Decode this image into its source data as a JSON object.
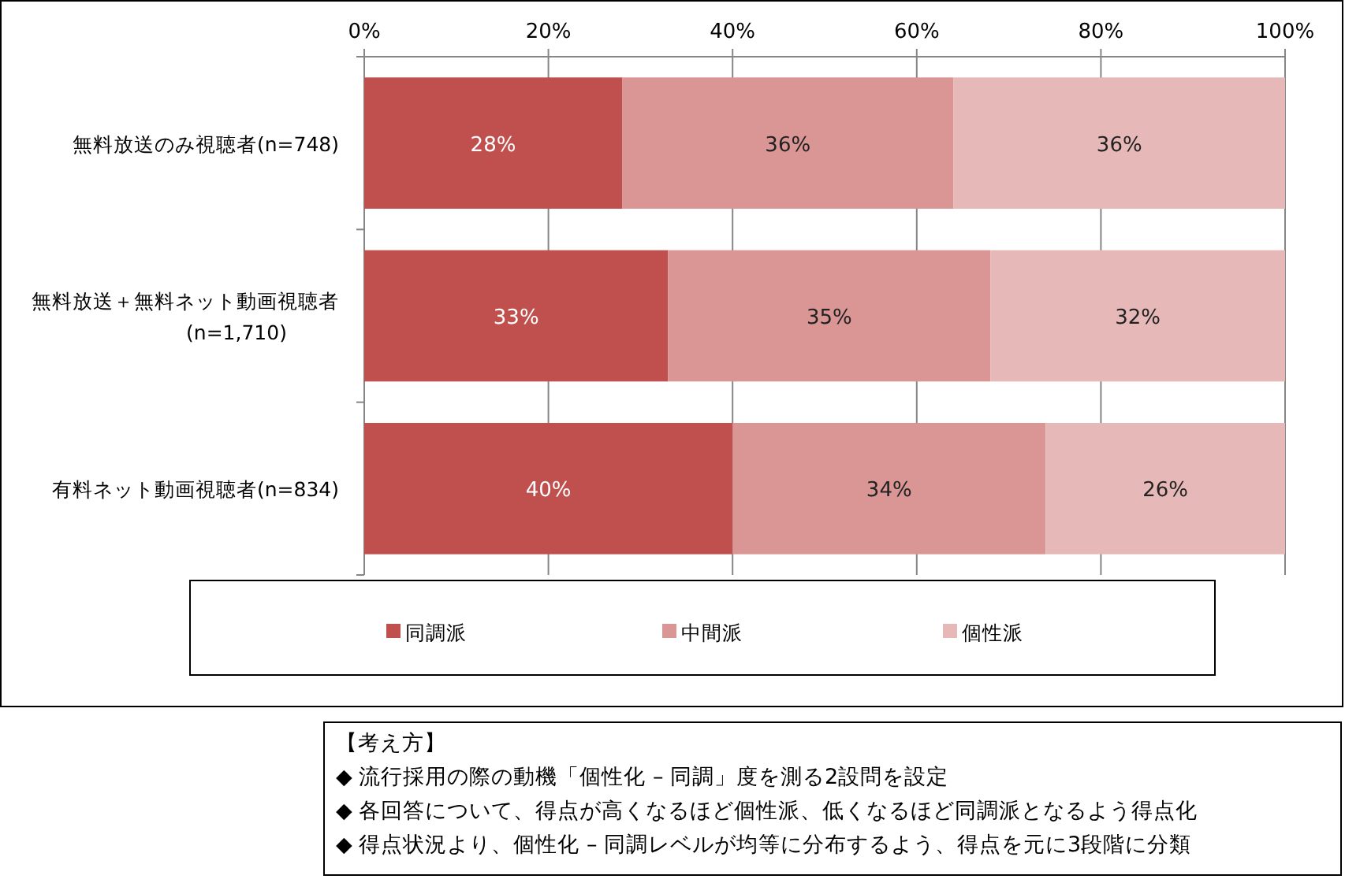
{
  "chart_data": {
    "type": "bar",
    "orientation": "horizontal",
    "stacked": true,
    "categories": [
      "無料放送のみ視聴者(n=748)",
      "無料放送＋無料ネット動画視聴者\n(n=1,710)",
      "有料ネット動画視聴者(n=834)"
    ],
    "series": [
      {
        "name": "同調派",
        "color": "#c0504d",
        "values": [
          28,
          33,
          40
        ],
        "value_labels": [
          "28%",
          "33%",
          "40%"
        ]
      },
      {
        "name": "中間派",
        "color": "#d99694",
        "values": [
          36,
          35,
          34
        ],
        "value_labels": [
          "36%",
          "35%",
          "34%"
        ]
      },
      {
        "name": "個性派",
        "color": "#e6b9b8",
        "values": [
          36,
          32,
          26
        ],
        "value_labels": [
          "36%",
          "32%",
          "26%"
        ]
      }
    ],
    "xlim": [
      0,
      100
    ],
    "xticks": [
      {
        "value": 0,
        "label": "0%"
      },
      {
        "value": 20,
        "label": "20%"
      },
      {
        "value": 40,
        "label": "40%"
      },
      {
        "value": 60,
        "label": "60%"
      },
      {
        "value": 80,
        "label": "80%"
      },
      {
        "value": 100,
        "label": "100%"
      }
    ],
    "grid": "x",
    "legend": "bottom",
    "annotations": [
      "【考え方】",
      "◆ 流行採用の際の動機「個性化 – 同調」度を測る2設問を設定",
      "◆ 各回答について、得点が高くなるほど個性派、低くなるほど同調派となるよう得点化",
      "◆ 得点状況より、個性化 – 同調レベルが均等に分布するよう、得点を元に3段階に分類"
    ]
  }
}
